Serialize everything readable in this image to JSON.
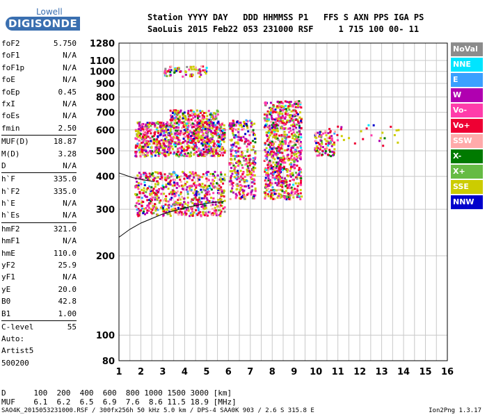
{
  "logo": {
    "line1": "Lowell",
    "line2": "DIGISONDE"
  },
  "header": {
    "line1": "Station YYYY DAY   DDD HHMMSS P1   FFS S AXN PPS IGA PS",
    "line2": "SaoLuis 2015 Feb22 053 231000 RSF     1 715 100 00- 11"
  },
  "params": [
    {
      "label": "foF2",
      "value": "5.750"
    },
    {
      "label": "foF1",
      "value": "N/A"
    },
    {
      "label": "foF1p",
      "value": "N/A"
    },
    {
      "label": "foE",
      "value": "N/A"
    },
    {
      "label": "foEp",
      "value": "0.45"
    },
    {
      "label": "fxI",
      "value": "N/A"
    },
    {
      "label": "foEs",
      "value": "N/A"
    },
    {
      "label": "fmin",
      "value": "2.50"
    },
    {
      "label": "MUF(D)",
      "value": "18.87"
    },
    {
      "label": "M(D)",
      "value": "3.28"
    },
    {
      "label": "D",
      "value": "N/A"
    },
    {
      "label": "h`F",
      "value": "335.0"
    },
    {
      "label": "h`F2",
      "value": "335.0"
    },
    {
      "label": "h`E",
      "value": "N/A"
    },
    {
      "label": "h`Es",
      "value": "N/A"
    },
    {
      "label": "hmF2",
      "value": "321.0"
    },
    {
      "label": "hmF1",
      "value": "N/A"
    },
    {
      "label": "hmE",
      "value": "110.0"
    },
    {
      "label": "yF2",
      "value": "25.9"
    },
    {
      "label": "yF1",
      "value": "N/A"
    },
    {
      "label": "yE",
      "value": "20.0"
    },
    {
      "label": "B0",
      "value": "42.8"
    },
    {
      "label": "B1",
      "value": "1.00"
    },
    {
      "label": "C-level",
      "value": "55"
    }
  ],
  "auto": {
    "line1": "Auto:",
    "line2": "Artist5",
    "line3": "500200"
  },
  "legend": [
    {
      "label": "NoVal",
      "color": "#8c8c8c"
    },
    {
      "label": "NNE",
      "color": "#00e5ff"
    },
    {
      "label": "E",
      "color": "#3aa0ff"
    },
    {
      "label": "W",
      "color": "#b000b0"
    },
    {
      "label": "Vo-",
      "color": "#ff3caa"
    },
    {
      "label": "Vo+",
      "color": "#ee0033"
    },
    {
      "label": "SSW",
      "color": "#ffaaaa"
    },
    {
      "label": "X-",
      "color": "#007a00"
    },
    {
      "label": "X+",
      "color": "#66bb44"
    },
    {
      "label": "SSE",
      "color": "#cccc00"
    },
    {
      "label": "NNW",
      "color": "#0000cc"
    }
  ],
  "footer": {
    "d_row": "D      100  200  400  600  800 1000 1500 3000 [km]",
    "muf_row": "MUF    6.1  6.2  6.5  6.9  7.6  8.6 11.5 18.9 [MHz]",
    "file_line": "SAO4K_2015053231000.RSF / 300fx256h 50 kHz 5.0 km / DPS-4 SAA0K 903 / 2.6 S 315.8 E",
    "version": "Ion2Png 1.3.17"
  },
  "chart_data": {
    "type": "scatter",
    "title": "",
    "xlabel": "",
    "ylabel": "",
    "xlim": [
      1,
      16
    ],
    "ylim": [
      80,
      1280
    ],
    "y_scale": "log",
    "x_ticks": [
      "1",
      "2",
      "3",
      "4",
      "5",
      "6",
      "7",
      "8",
      "9",
      "10",
      "11",
      "12",
      "13",
      "14",
      "15",
      "16"
    ],
    "y_ticks": [
      "80",
      "100",
      "200",
      "300",
      "400",
      "500",
      "600",
      "700",
      "800",
      "900",
      "1000",
      "1100",
      "1280"
    ],
    "grid": true,
    "clusters": [
      {
        "x": [
          1.7,
          5.8
        ],
        "y": [
          480,
          650
        ],
        "density": 900
      },
      {
        "x": [
          1.7,
          5.8
        ],
        "y": [
          285,
          420
        ],
        "density": 650
      },
      {
        "x": [
          3.3,
          5.5
        ],
        "y": [
          640,
          720
        ],
        "density": 150
      },
      {
        "x": [
          3.0,
          5.0
        ],
        "y": [
          960,
          1060
        ],
        "density": 70
      },
      {
        "x": [
          6.0,
          7.2
        ],
        "y": [
          330,
          660
        ],
        "density": 350
      },
      {
        "x": [
          7.6,
          9.3
        ],
        "y": [
          330,
          780
        ],
        "density": 800
      },
      {
        "x": [
          9.9,
          10.8
        ],
        "y": [
          480,
          600
        ],
        "density": 90
      },
      {
        "x": [
          10.5,
          13.8
        ],
        "y": [
          520,
          650
        ],
        "density": 30
      }
    ],
    "series": [
      {
        "x": [
          1.0,
          1.5,
          2.0,
          3.0,
          4.0,
          5.0,
          5.8
        ],
        "y": [
          235,
          252,
          266,
          288,
          304,
          316,
          322
        ]
      },
      {
        "x": [
          1.0,
          1.6,
          2.1,
          2.6
        ],
        "y": [
          412,
          396,
          388,
          382
        ]
      }
    ]
  }
}
